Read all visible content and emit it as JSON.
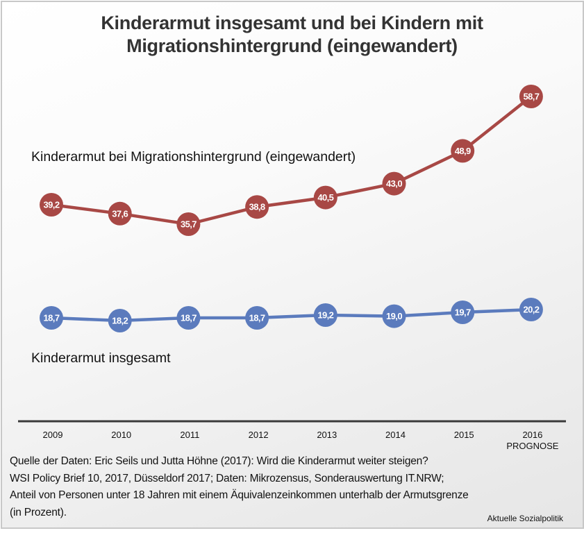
{
  "chart_data": {
    "type": "line",
    "title": "Kinderarmut insgesamt und bei Kindern mit Migrationshintergrund (eingewandert)",
    "title_lines": [
      "Kinderarmut insgesamt und bei Kindern mit",
      "Migrationshintergrund (eingewandert)"
    ],
    "xlabel": "",
    "ylabel": "",
    "categories": [
      "2009",
      "2010",
      "2011",
      "2012",
      "2013",
      "2014",
      "2015",
      "2016"
    ],
    "category_sublabels": [
      "",
      "",
      "",
      "",
      "",
      "",
      "",
      "PROGNOSE"
    ],
    "series": [
      {
        "name": "Kinderarmut bei Migrationshintergrund (eingewandert)",
        "color": "#a84845",
        "values": [
          39.2,
          37.6,
          35.7,
          38.8,
          40.5,
          43.0,
          48.9,
          58.7
        ],
        "labels": [
          "39,2",
          "37,6",
          "35,7",
          "38,8",
          "40,5",
          "43,0",
          "48,9",
          "58,7"
        ]
      },
      {
        "name": "Kinderarmut insgesamt",
        "color": "#5b7bbd",
        "values": [
          18.7,
          18.2,
          18.7,
          18.7,
          19.2,
          19.0,
          19.7,
          20.2
        ],
        "labels": [
          "18,7",
          "18,2",
          "18,7",
          "18,7",
          "19,2",
          "19,0",
          "19,7",
          "20,2"
        ]
      }
    ],
    "grid": false,
    "legend": "inline labels near series",
    "unit": "Prozent"
  },
  "source_lines": [
    "Quelle der Daten: Eric Seils und Jutta Höhne (2017): Wird die Kinderarmut weiter steigen?",
    "WSI Policy Brief 10, 2017, Düsseldorf 2017; Daten: Mikrozensus, Sonderauswertung IT.NRW;",
    "Anteil von Personen unter 18 Jahren mit einem Äquivalenzeinkommen unterhalb der Armutsgrenze",
    "(in Prozent)."
  ],
  "credit": "Aktuelle Sozialpolitik"
}
